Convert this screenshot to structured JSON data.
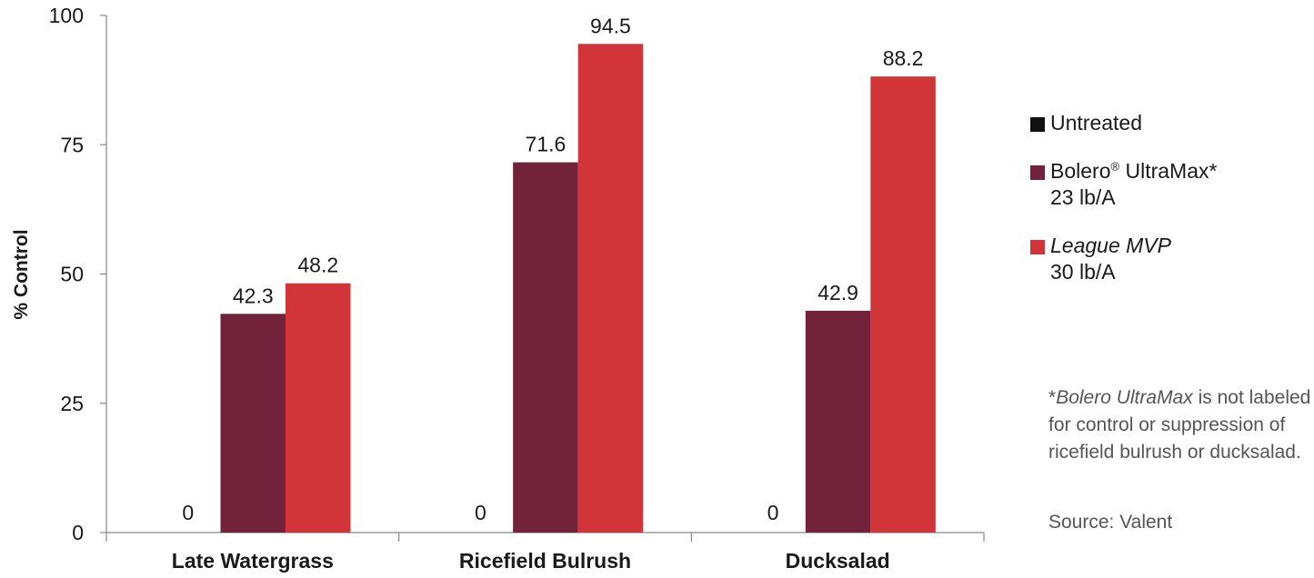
{
  "chart_data": {
    "type": "bar",
    "title": "",
    "xlabel": "",
    "ylabel": "% Control",
    "ylim": [
      0,
      100
    ],
    "yticks": [
      0,
      25,
      50,
      75,
      100
    ],
    "grid": false,
    "legend_position": "right",
    "categories": [
      "Late Watergrass",
      "Ricefield Bulrush",
      "Ducksalad"
    ],
    "series": [
      {
        "name": "Untreated",
        "color": "#111111",
        "values": [
          0,
          0,
          0
        ]
      },
      {
        "name": "Bolero UltraMax* 23 lb/A",
        "color": "#72233b",
        "values": [
          42.3,
          71.6,
          42.9
        ]
      },
      {
        "name": "League MVP 30 lb/A",
        "color": "#d13539",
        "values": [
          48.2,
          94.5,
          88.2
        ]
      }
    ]
  },
  "legend": {
    "items": [
      {
        "main": "Untreated",
        "sub": "",
        "reg": "",
        "rest": "",
        "color": "#111111"
      },
      {
        "main": "Bolero",
        "reg": "®",
        "rest": " UltraMax*",
        "sub": "23 lb/A",
        "color": "#72233b"
      },
      {
        "main": "League MVP",
        "reg": "",
        "rest": "",
        "sub": "30 lb/A",
        "color": "#d13539"
      }
    ]
  },
  "footnote": {
    "prefix": "*",
    "product": "Bolero UltraMax",
    "text": " is not labeled for control or suppression of ricefield bulrush or ducksalad."
  },
  "source": "Source: Valent"
}
